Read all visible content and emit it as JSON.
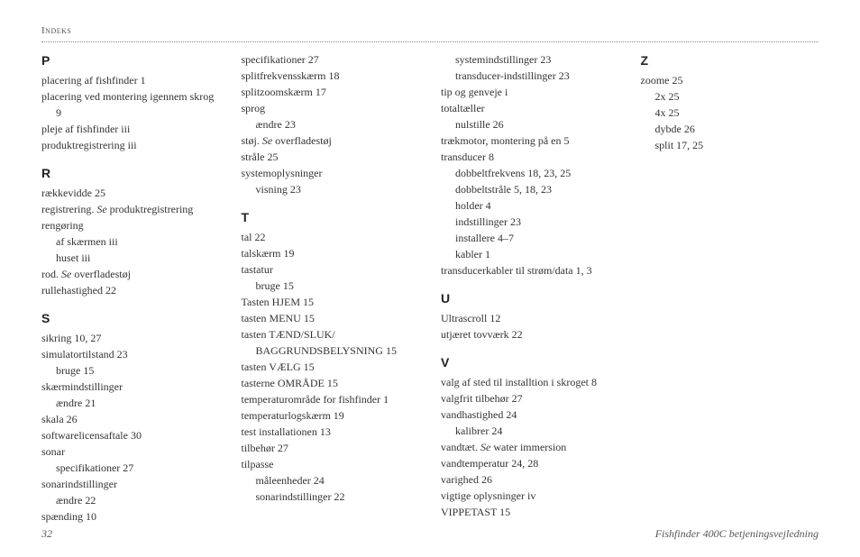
{
  "header": "Indeks",
  "footer": {
    "page": "32",
    "title": "Fishfinder 400C betjeningsvejledning"
  },
  "columns": [
    [
      {
        "type": "letter",
        "text": "P",
        "first": true
      },
      {
        "type": "entry",
        "text": "placering af fishfinder",
        "pg": "1"
      },
      {
        "type": "entry",
        "text": "placering ved montering igennem skrog"
      },
      {
        "type": "sub1-pg",
        "pg": "9"
      },
      {
        "type": "entry",
        "text": "pleje af fishfinder",
        "pg": "iii"
      },
      {
        "type": "entry",
        "text": "produktregistrering",
        "pg": "iii"
      },
      {
        "type": "letter",
        "text": "R"
      },
      {
        "type": "entry",
        "text": "rækkevidde",
        "pg": "25"
      },
      {
        "type": "see",
        "text": "registrering.",
        "see": "Se",
        "rest": "produktregistrering"
      },
      {
        "type": "entry",
        "text": "rengøring"
      },
      {
        "type": "sub1",
        "text": "af skærmen",
        "pg": "iii"
      },
      {
        "type": "sub1",
        "text": "huset",
        "pg": "iii"
      },
      {
        "type": "see",
        "text": "rod.",
        "see": "Se",
        "rest": "overfladestøj"
      },
      {
        "type": "entry",
        "text": "rullehastighed",
        "pg": "22"
      },
      {
        "type": "letter",
        "text": "S"
      },
      {
        "type": "entry",
        "text": "sikring",
        "pg": "10, 27"
      },
      {
        "type": "entry",
        "text": "simulatortilstand",
        "pg": "23"
      },
      {
        "type": "sub1",
        "text": "bruge",
        "pg": "15"
      },
      {
        "type": "entry",
        "text": "skærmindstillinger"
      },
      {
        "type": "sub1",
        "text": "ændre",
        "pg": "21"
      },
      {
        "type": "entry",
        "text": "skala",
        "pg": "26"
      },
      {
        "type": "entry",
        "text": "softwarelicensaftale",
        "pg": "30"
      },
      {
        "type": "entry",
        "text": "sonar"
      },
      {
        "type": "sub1",
        "text": "specifikationer",
        "pg": "27"
      },
      {
        "type": "entry",
        "text": "sonarindstillinger"
      },
      {
        "type": "sub1",
        "text": "ændre",
        "pg": "22"
      },
      {
        "type": "entry",
        "text": "spænding",
        "pg": "10"
      }
    ],
    [
      {
        "type": "entry",
        "text": "specifikationer",
        "pg": "27",
        "first": true
      },
      {
        "type": "entry",
        "text": "splitfrekvensskærm",
        "pg": "18"
      },
      {
        "type": "entry",
        "text": "splitzoomskærm",
        "pg": "17"
      },
      {
        "type": "entry",
        "text": "sprog"
      },
      {
        "type": "sub1",
        "text": "ændre",
        "pg": "23"
      },
      {
        "type": "see",
        "text": "støj.",
        "see": "Se",
        "rest": "overfladestøj"
      },
      {
        "type": "entry",
        "text": "stråle",
        "pg": "25"
      },
      {
        "type": "entry",
        "text": "systemoplysninger"
      },
      {
        "type": "sub1",
        "text": "visning",
        "pg": "23"
      },
      {
        "type": "letter",
        "text": "T"
      },
      {
        "type": "entry",
        "text": "tal",
        "pg": "22"
      },
      {
        "type": "entry",
        "text": "talskærm",
        "pg": "19"
      },
      {
        "type": "entry",
        "text": "tastatur"
      },
      {
        "type": "sub1",
        "text": "bruge",
        "pg": "15"
      },
      {
        "type": "entry",
        "text": "Tasten HJEM",
        "pg": "15"
      },
      {
        "type": "entry",
        "text": "tasten MENU",
        "pg": "15"
      },
      {
        "type": "entry",
        "text": "tasten TÆND/SLUK/"
      },
      {
        "type": "sub1-cont",
        "text": "BAGGRUNDSBELYSNING",
        "pg": "15"
      },
      {
        "type": "entry",
        "text": "tasten VÆLG",
        "pg": "15"
      },
      {
        "type": "entry",
        "text": "tasterne OMRÅDE",
        "pg": "15"
      },
      {
        "type": "entry",
        "text": "temperaturområde for fishfinder",
        "pg": "1"
      },
      {
        "type": "entry",
        "text": "temperaturlogskærm",
        "pg": "19"
      },
      {
        "type": "entry",
        "text": "test installationen",
        "pg": "13"
      },
      {
        "type": "entry",
        "text": "tilbehør",
        "pg": "27"
      },
      {
        "type": "entry",
        "text": "tilpasse"
      },
      {
        "type": "sub1",
        "text": "måleenheder",
        "pg": "24"
      },
      {
        "type": "sub1",
        "text": "sonarindstillinger",
        "pg": "22"
      }
    ],
    [
      {
        "type": "sub1",
        "text": "systemindstillinger",
        "pg": "23",
        "first": true
      },
      {
        "type": "sub1",
        "text": "transducer-indstillinger",
        "pg": "23"
      },
      {
        "type": "entry",
        "text": "tip og genveje",
        "pg": "i"
      },
      {
        "type": "entry",
        "text": "totaltæller"
      },
      {
        "type": "sub1",
        "text": "nulstille",
        "pg": "26"
      },
      {
        "type": "entry",
        "text": "trækmotor, montering på en",
        "pg": "5"
      },
      {
        "type": "entry",
        "text": "transducer",
        "pg": "8"
      },
      {
        "type": "sub1",
        "text": "dobbeltfrekvens",
        "pg": "18, 23, 25"
      },
      {
        "type": "sub1",
        "text": "dobbeltstråle",
        "pg": "5, 18, 23"
      },
      {
        "type": "sub1",
        "text": "holder",
        "pg": "4"
      },
      {
        "type": "sub1",
        "text": "indstillinger",
        "pg": "23"
      },
      {
        "type": "sub1",
        "text": "installere",
        "pg": "4–7"
      },
      {
        "type": "sub1",
        "text": "kabler",
        "pg": "1"
      },
      {
        "type": "entry",
        "text": "transducerkabler til strøm/data",
        "pg": "1, 3"
      },
      {
        "type": "letter",
        "text": "U"
      },
      {
        "type": "entry",
        "text": "Ultrascroll",
        "pg": "12"
      },
      {
        "type": "entry",
        "text": "utjæret tovværk",
        "pg": "22"
      },
      {
        "type": "letter",
        "text": "V"
      },
      {
        "type": "entry",
        "text": "valg af sted til installtion i skroget",
        "pg": "8"
      },
      {
        "type": "entry",
        "text": "valgfrit tilbehør",
        "pg": "27"
      },
      {
        "type": "entry",
        "text": "vandhastighed",
        "pg": "24"
      },
      {
        "type": "sub1",
        "text": "kalibrer",
        "pg": "24"
      },
      {
        "type": "see",
        "text": "vandtæt.",
        "see": "Se",
        "rest": "water immersion"
      },
      {
        "type": "entry",
        "text": "vandtemperatur",
        "pg": "24, 28"
      },
      {
        "type": "entry",
        "text": "varighed",
        "pg": "26"
      },
      {
        "type": "entry",
        "text": "vigtige oplysninger",
        "pg": "iv"
      },
      {
        "type": "entry",
        "text": "VIPPETAST",
        "pg": "15"
      }
    ],
    [
      {
        "type": "letter",
        "text": "Z",
        "first": true
      },
      {
        "type": "entry",
        "text": "zoome",
        "pg": "25"
      },
      {
        "type": "sub1",
        "text": "2x",
        "pg": "25"
      },
      {
        "type": "sub1",
        "text": "4x",
        "pg": "25"
      },
      {
        "type": "sub1",
        "text": "dybde",
        "pg": "26"
      },
      {
        "type": "sub1",
        "text": "split",
        "pg": "17, 25"
      }
    ]
  ]
}
